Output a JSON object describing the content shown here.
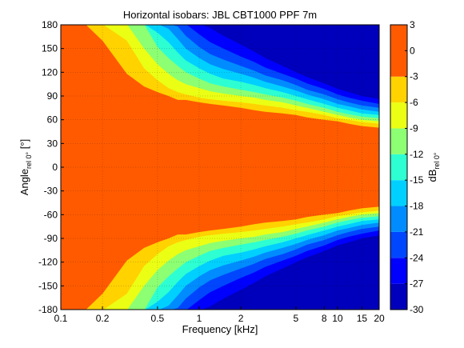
{
  "chart_data": {
    "type": "heatmap",
    "title": "Horizontal isobars: JBL  CBT1000 PPF  7m",
    "xlabel": "Frequency [kHz]",
    "ylabel": "Angle",
    "ylabel_sub": "rel 0°",
    "ylabel_unit": " [°]",
    "x_scale": "log",
    "xlim": [
      0.1,
      20
    ],
    "ylim": [
      -180,
      180
    ],
    "x_ticks": [
      0.1,
      0.2,
      0.5,
      1,
      2,
      5,
      8,
      10,
      15,
      20
    ],
    "x_tick_labels": [
      "0.1",
      "0.2",
      "0.5",
      "1",
      "2",
      "5",
      "8",
      "10",
      "15",
      "20"
    ],
    "y_ticks": [
      180,
      150,
      120,
      90,
      60,
      30,
      0,
      -30,
      -60,
      -90,
      -120,
      -150,
      -180
    ],
    "y_tick_labels": [
      "180",
      "150",
      "120",
      "90",
      "60",
      "30",
      "0",
      "-30",
      "-60",
      "-90",
      "-120",
      "-150",
      "-180"
    ],
    "grid": true,
    "colorbar": {
      "label": "dB",
      "label_sub": "rel 0°",
      "range": [
        -30,
        3
      ],
      "ticks": [
        3,
        0,
        -3,
        -6,
        -9,
        -12,
        -15,
        -18,
        -21,
        -24,
        -27,
        -30
      ],
      "tick_labels": [
        "3",
        "0",
        "-3",
        "-6",
        "-9",
        "-12",
        "-15",
        "-18",
        "-21",
        "-24",
        "-27",
        "-30"
      ],
      "levels": [
        {
          "min": -30,
          "max": -27,
          "color": "#0000bc"
        },
        {
          "min": -27,
          "max": -24,
          "color": "#0000ff"
        },
        {
          "min": -24,
          "max": -21,
          "color": "#0046ff"
        },
        {
          "min": -21,
          "max": -18,
          "color": "#008cff"
        },
        {
          "min": -18,
          "max": -15,
          "color": "#00d0ff"
        },
        {
          "min": -15,
          "max": -12,
          "color": "#2dffd2"
        },
        {
          "min": -12,
          "max": -9,
          "color": "#8cff73"
        },
        {
          "min": -9,
          "max": -6,
          "color": "#ebff14"
        },
        {
          "min": -6,
          "max": -3,
          "color": "#ffd200"
        },
        {
          "min": -3,
          "max": 3,
          "color": "#ff5a00"
        }
      ]
    },
    "isobars": {
      "x": [
        0.1,
        0.15,
        0.2,
        0.3,
        0.4,
        0.5,
        0.6,
        0.7,
        0.8,
        1.0,
        1.2,
        1.5,
        2.0,
        2.5,
        3.0,
        4.0,
        5.0,
        6.0,
        8.0,
        10.0,
        12.0,
        15.0,
        20.0
      ],
      "contours": [
        {
          "level": -3,
          "angle": [
            181,
            181,
            160,
            118,
            102,
            95,
            90,
            85,
            85,
            82,
            80,
            78,
            75,
            72,
            70,
            68,
            66,
            63,
            60,
            58,
            55,
            52,
            50
          ]
        },
        {
          "level": -6,
          "angle": [
            181,
            181,
            181,
            160,
            125,
            110,
            100,
            95,
            92,
            88,
            86,
            84,
            82,
            80,
            78,
            75,
            72,
            70,
            66,
            62,
            60,
            57,
            55
          ]
        },
        {
          "level": -9,
          "angle": [
            181,
            181,
            181,
            181,
            150,
            130,
            118,
            110,
            105,
            100,
            96,
            93,
            90,
            88,
            85,
            82,
            78,
            75,
            70,
            66,
            63,
            60,
            58
          ]
        },
        {
          "level": -12,
          "angle": [
            181,
            181,
            181,
            181,
            181,
            152,
            138,
            128,
            120,
            112,
            106,
            102,
            98,
            95,
            92,
            88,
            84,
            80,
            75,
            70,
            67,
            64,
            62
          ]
        },
        {
          "level": -15,
          "angle": [
            181,
            181,
            181,
            181,
            181,
            170,
            158,
            145,
            135,
            125,
            118,
            112,
            108,
            104,
            100,
            95,
            90,
            86,
            80,
            75,
            72,
            68,
            66
          ]
        },
        {
          "level": -18,
          "angle": [
            181,
            181,
            181,
            181,
            181,
            181,
            175,
            162,
            150,
            138,
            130,
            124,
            118,
            113,
            108,
            102,
            97,
            92,
            86,
            80,
            77,
            73,
            70
          ]
        },
        {
          "level": -21,
          "angle": [
            181,
            181,
            181,
            181,
            181,
            181,
            181,
            178,
            166,
            152,
            143,
            136,
            128,
            122,
            116,
            110,
            104,
            98,
            92,
            86,
            82,
            78,
            75
          ]
        },
        {
          "level": -24,
          "angle": [
            181,
            181,
            181,
            181,
            181,
            181,
            181,
            181,
            181,
            168,
            158,
            150,
            140,
            133,
            126,
            118,
            112,
            106,
            99,
            92,
            88,
            84,
            80
          ]
        },
        {
          "level": -27,
          "angle": [
            181,
            181,
            181,
            181,
            181,
            181,
            181,
            181,
            181,
            181,
            176,
            166,
            155,
            146,
            138,
            128,
            120,
            114,
            106,
            99,
            95,
            90,
            86
          ]
        }
      ]
    }
  }
}
